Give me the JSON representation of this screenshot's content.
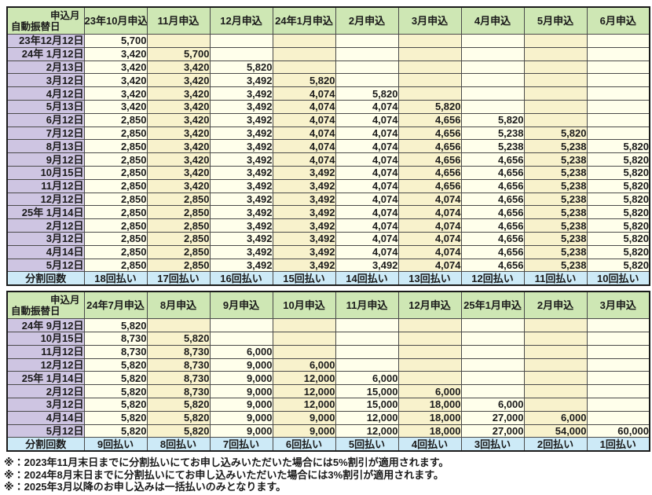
{
  "colors": {
    "header_green": "#cee7b4",
    "row_header_purple": "#cec5e2",
    "footer_blue": "#cdeaf7",
    "cell_ivory": "#ffffeb",
    "cell_cream": "#f8f2cc",
    "grid_border": "#4a4a4a",
    "outer_border": "#1a1a1a",
    "text": "#1a1a1a"
  },
  "corner": {
    "top_label": "申込月",
    "bottom_label": "自動振替日"
  },
  "footer_label": "分割回数",
  "tables": [
    {
      "columns": [
        "23年10月申込",
        "11月申込",
        "12月申込",
        "24年1月申込",
        "2月申込",
        "3月申込",
        "4月申込",
        "5月申込",
        "6月申込"
      ],
      "rows": [
        {
          "date": "23年12月12日",
          "values": [
            "5,700",
            "",
            "",
            "",
            "",
            "",
            "",
            "",
            ""
          ]
        },
        {
          "date": "24年 1月12日",
          "values": [
            "3,420",
            "5,700",
            "",
            "",
            "",
            "",
            "",
            "",
            ""
          ]
        },
        {
          "date": "2月13日",
          "values": [
            "3,420",
            "3,420",
            "5,820",
            "",
            "",
            "",
            "",
            "",
            ""
          ]
        },
        {
          "date": "3月12日",
          "values": [
            "3,420",
            "3,420",
            "3,492",
            "5,820",
            "",
            "",
            "",
            "",
            ""
          ]
        },
        {
          "date": "4月12日",
          "values": [
            "3,420",
            "3,420",
            "3,492",
            "4,074",
            "5,820",
            "",
            "",
            "",
            ""
          ]
        },
        {
          "date": "5月13日",
          "values": [
            "3,420",
            "3,420",
            "3,492",
            "4,074",
            "4,074",
            "5,820",
            "",
            "",
            ""
          ]
        },
        {
          "date": "6月12日",
          "values": [
            "2,850",
            "3,420",
            "3,492",
            "4,074",
            "4,074",
            "4,656",
            "5,820",
            "",
            ""
          ]
        },
        {
          "date": "7月12日",
          "values": [
            "2,850",
            "3,420",
            "3,492",
            "4,074",
            "4,074",
            "4,656",
            "5,238",
            "5,820",
            ""
          ]
        },
        {
          "date": "8月13日",
          "values": [
            "2,850",
            "3,420",
            "3,492",
            "4,074",
            "4,074",
            "4,656",
            "5,238",
            "5,238",
            "5,820"
          ]
        },
        {
          "date": "9月12日",
          "values": [
            "2,850",
            "3,420",
            "3,492",
            "4,074",
            "4,074",
            "4,656",
            "4,656",
            "5,238",
            "5,820"
          ]
        },
        {
          "date": "10月15日",
          "values": [
            "2,850",
            "3,420",
            "3,492",
            "3,492",
            "4,074",
            "4,656",
            "4,656",
            "5,238",
            "5,820"
          ]
        },
        {
          "date": "11月12日",
          "values": [
            "2,850",
            "3,420",
            "3,492",
            "3,492",
            "4,074",
            "4,656",
            "4,656",
            "5,238",
            "5,820"
          ]
        },
        {
          "date": "12月12日",
          "values": [
            "2,850",
            "2,850",
            "3,492",
            "3,492",
            "4,074",
            "4,074",
            "4,656",
            "5,238",
            "5,820"
          ]
        },
        {
          "date": "25年 1月14日",
          "values": [
            "2,850",
            "2,850",
            "3,492",
            "3,492",
            "4,074",
            "4,074",
            "4,656",
            "5,238",
            "5,820"
          ]
        },
        {
          "date": "2月12日",
          "values": [
            "2,850",
            "2,850",
            "3,492",
            "3,492",
            "4,074",
            "4,074",
            "4,656",
            "5,238",
            "5,820"
          ]
        },
        {
          "date": "3月12日",
          "values": [
            "2,850",
            "2,850",
            "3,492",
            "3,492",
            "4,074",
            "4,074",
            "4,656",
            "5,238",
            "5,820"
          ]
        },
        {
          "date": "4月14日",
          "values": [
            "2,850",
            "2,850",
            "3,492",
            "3,492",
            "4,074",
            "4,074",
            "4,656",
            "5,238",
            "5,820"
          ]
        },
        {
          "date": "5月12日",
          "values": [
            "2,850",
            "2,850",
            "3,492",
            "3,492",
            "3,492",
            "4,074",
            "4,656",
            "5,238",
            "5,820"
          ]
        }
      ],
      "footer_values": [
        "18回払い",
        "17回払い",
        "16回払い",
        "15回払い",
        "14回払い",
        "13回払い",
        "12回払い",
        "11回払い",
        "10回払い"
      ]
    },
    {
      "columns": [
        "24年7月申込",
        "8月申込",
        "9月申込",
        "10月申込",
        "11月申込",
        "12月申込",
        "25年1月申込",
        "2月申込",
        "3月申込"
      ],
      "rows": [
        {
          "date": "24年 9月12日",
          "values": [
            "5,820",
            "",
            "",
            "",
            "",
            "",
            "",
            "",
            ""
          ]
        },
        {
          "date": "10月15日",
          "values": [
            "8,730",
            "5,820",
            "",
            "",
            "",
            "",
            "",
            "",
            ""
          ]
        },
        {
          "date": "11月12日",
          "values": [
            "8,730",
            "8,730",
            "6,000",
            "",
            "",
            "",
            "",
            "",
            ""
          ]
        },
        {
          "date": "12月12日",
          "values": [
            "5,820",
            "8,730",
            "9,000",
            "6,000",
            "",
            "",
            "",
            "",
            ""
          ]
        },
        {
          "date": "25年 1月14日",
          "values": [
            "5,820",
            "8,730",
            "9,000",
            "12,000",
            "6,000",
            "",
            "",
            "",
            ""
          ]
        },
        {
          "date": "2月12日",
          "values": [
            "5,820",
            "8,730",
            "9,000",
            "12,000",
            "15,000",
            "6,000",
            "",
            "",
            ""
          ]
        },
        {
          "date": "3月12日",
          "values": [
            "5,820",
            "5,820",
            "9,000",
            "12,000",
            "15,000",
            "18,000",
            "6,000",
            "",
            ""
          ]
        },
        {
          "date": "4月14日",
          "values": [
            "5,820",
            "5,820",
            "9,000",
            "9,000",
            "12,000",
            "18,000",
            "27,000",
            "6,000",
            ""
          ]
        },
        {
          "date": "5月12日",
          "values": [
            "5,820",
            "5,820",
            "9,000",
            "9,000",
            "12,000",
            "18,000",
            "27,000",
            "54,000",
            "60,000"
          ]
        }
      ],
      "footer_values": [
        "9回払い",
        "8回払い",
        "7回払い",
        "6回払い",
        "5回払い",
        "4回払い",
        "3回払い",
        "2回払い",
        "1回払い"
      ]
    }
  ],
  "footnotes": [
    "※：2023年11月末日までに分割払いにてお申し込みいただいた場合には5%割引が適用されます。",
    "※：2024年8月末日までに分割払いにてお申し込みいただいた場合には3%割引が適用されます。",
    "※：2025年3月以降のお申し込みは一括払いのみとなります。"
  ]
}
